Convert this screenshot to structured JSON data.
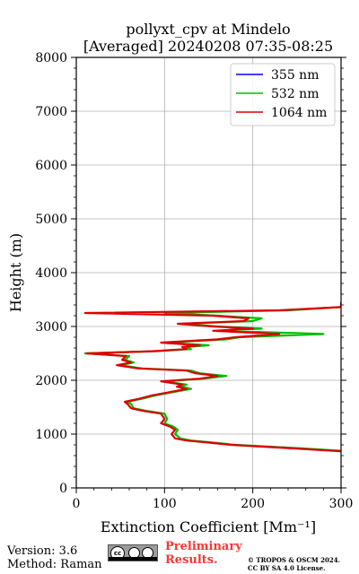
{
  "chart_data": {
    "type": "line",
    "title": "pollyxt_cpv at Mindelo",
    "subtitle": "[Averaged] 20240208 07:35-08:25",
    "xlabel": "Extinction Coefficient [Mm⁻¹]",
    "ylabel": "Height (m)",
    "xlim": [
      0,
      300
    ],
    "ylim": [
      0,
      8000
    ],
    "xticks": [
      0,
      100,
      200,
      300
    ],
    "yticks": [
      0,
      1000,
      2000,
      3000,
      4000,
      5000,
      6000,
      7000,
      8000
    ],
    "grid": true,
    "legend_position": "top-right",
    "series": [
      {
        "name": "355 nm",
        "color": "#0000ff",
        "points": []
      },
      {
        "name": "532 nm",
        "color": "#00bb00",
        "points": [
          [
            310,
            680
          ],
          [
            250,
            740
          ],
          [
            180,
            800
          ],
          [
            150,
            850
          ],
          [
            130,
            880
          ],
          [
            118,
            920
          ],
          [
            112,
            1000
          ],
          [
            115,
            1080
          ],
          [
            110,
            1140
          ],
          [
            100,
            1200
          ],
          [
            103,
            1280
          ],
          [
            100,
            1380
          ],
          [
            80,
            1430
          ],
          [
            65,
            1480
          ],
          [
            62,
            1560
          ],
          [
            58,
            1600
          ],
          [
            75,
            1660
          ],
          [
            90,
            1720
          ],
          [
            110,
            1780
          ],
          [
            130,
            1840
          ],
          [
            118,
            1880
          ],
          [
            125,
            1920
          ],
          [
            100,
            1980
          ],
          [
            145,
            2030
          ],
          [
            170,
            2080
          ],
          [
            140,
            2130
          ],
          [
            130,
            2180
          ],
          [
            75,
            2220
          ],
          [
            50,
            2280
          ],
          [
            65,
            2330
          ],
          [
            55,
            2380
          ],
          [
            60,
            2450
          ],
          [
            10,
            2500
          ],
          [
            90,
            2540
          ],
          [
            130,
            2580
          ],
          [
            125,
            2620
          ],
          [
            150,
            2650
          ],
          [
            100,
            2700
          ],
          [
            170,
            2760
          ],
          [
            185,
            2800
          ],
          [
            280,
            2860
          ],
          [
            160,
            2920
          ],
          [
            210,
            2960
          ],
          [
            160,
            3000
          ],
          [
            120,
            3050
          ],
          [
            200,
            3100
          ],
          [
            210,
            3150
          ],
          [
            160,
            3200
          ],
          [
            100,
            3250
          ],
          [
            240,
            3300
          ],
          [
            300,
            3360
          ]
        ]
      },
      {
        "name": "1064 nm",
        "color": "#dd0000",
        "points": [
          [
            300,
            680
          ],
          [
            240,
            740
          ],
          [
            175,
            800
          ],
          [
            145,
            850
          ],
          [
            125,
            880
          ],
          [
            112,
            920
          ],
          [
            108,
            1000
          ],
          [
            112,
            1080
          ],
          [
            106,
            1140
          ],
          [
            96,
            1200
          ],
          [
            100,
            1280
          ],
          [
            96,
            1380
          ],
          [
            76,
            1430
          ],
          [
            62,
            1480
          ],
          [
            58,
            1560
          ],
          [
            55,
            1600
          ],
          [
            72,
            1660
          ],
          [
            86,
            1720
          ],
          [
            106,
            1780
          ],
          [
            125,
            1840
          ],
          [
            114,
            1880
          ],
          [
            120,
            1920
          ],
          [
            96,
            1980
          ],
          [
            140,
            2030
          ],
          [
            160,
            2080
          ],
          [
            135,
            2130
          ],
          [
            125,
            2180
          ],
          [
            70,
            2220
          ],
          [
            46,
            2280
          ],
          [
            62,
            2330
          ],
          [
            52,
            2380
          ],
          [
            56,
            2450
          ],
          [
            12,
            2500
          ],
          [
            86,
            2540
          ],
          [
            125,
            2580
          ],
          [
            120,
            2620
          ],
          [
            140,
            2650
          ],
          [
            96,
            2700
          ],
          [
            160,
            2760
          ],
          [
            180,
            2800
          ],
          [
            230,
            2860
          ],
          [
            155,
            2920
          ],
          [
            200,
            2960
          ],
          [
            155,
            3000
          ],
          [
            115,
            3050
          ],
          [
            190,
            3100
          ],
          [
            195,
            3150
          ],
          [
            155,
            3200
          ],
          [
            10,
            3250
          ],
          [
            230,
            3300
          ],
          [
            300,
            3360
          ],
          [
            300,
            3450
          ]
        ]
      }
    ]
  },
  "footer": {
    "version": "Version: 3.6",
    "method": "Method: Raman",
    "cc_text": "cc",
    "preliminary_line1": "Preliminary",
    "preliminary_line2": "Results.",
    "copyright_line1": "© TROPOS & OSCM 2024.",
    "copyright_line2": "CC BY SA 4.0 License."
  }
}
